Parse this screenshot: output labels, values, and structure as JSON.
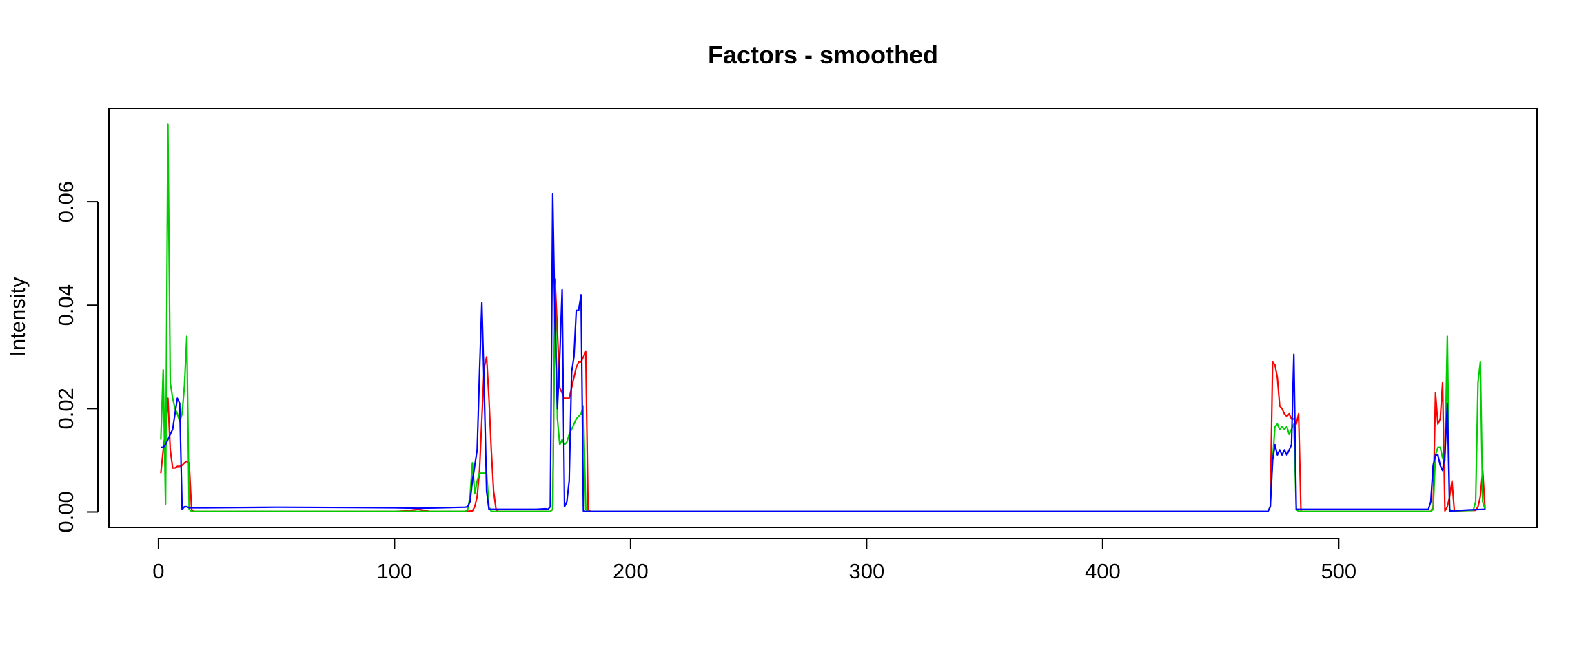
{
  "chart_data": {
    "type": "line",
    "title": "Factors - smoothed",
    "xlabel": "",
    "ylabel": "Intensity",
    "xlim": [
      -21,
      584
    ],
    "ylim": [
      -0.003,
      0.078
    ],
    "x_ticks": [
      0,
      100,
      200,
      300,
      400,
      500
    ],
    "y_ticks": [
      0.0,
      0.02,
      0.04,
      0.06
    ],
    "x_tick_labels": [
      "0",
      "100",
      "200",
      "300",
      "400",
      "500"
    ],
    "y_tick_labels": [
      "0.00",
      "0.02",
      "0.04",
      "0.06"
    ],
    "grid": false,
    "legend": "none",
    "series": [
      {
        "color": "#ff0000",
        "points": [
          [
            1,
            0.0075
          ],
          [
            2,
            0.012
          ],
          [
            3,
            0.016
          ],
          [
            4,
            0.022
          ],
          [
            5,
            0.012
          ],
          [
            6,
            0.0085
          ],
          [
            7,
            0.0085
          ],
          [
            8,
            0.0088
          ],
          [
            9,
            0.0088
          ],
          [
            10,
            0.009
          ],
          [
            11,
            0.0095
          ],
          [
            12,
            0.0098
          ],
          [
            13,
            0.0095
          ],
          [
            14,
            0.0005
          ],
          [
            15,
            0.0001
          ],
          [
            20,
            0.0001
          ],
          [
            100,
            0.0001
          ],
          [
            105,
            0.0002
          ],
          [
            110,
            0.0005
          ],
          [
            115,
            0.0001
          ],
          [
            130,
            0.0001
          ],
          [
            133,
            0.0002
          ],
          [
            134,
            0.001
          ],
          [
            135,
            0.003
          ],
          [
            136,
            0.008
          ],
          [
            137,
            0.018
          ],
          [
            138,
            0.028
          ],
          [
            139,
            0.03
          ],
          [
            140,
            0.022
          ],
          [
            141,
            0.012
          ],
          [
            142,
            0.004
          ],
          [
            143,
            0.0005
          ],
          [
            144,
            0.0001
          ],
          [
            166,
            0.0001
          ],
          [
            167,
            0.0005
          ],
          [
            168,
            0.045
          ],
          [
            169,
            0.035
          ],
          [
            170,
            0.024
          ],
          [
            171,
            0.023
          ],
          [
            172,
            0.022
          ],
          [
            173,
            0.022
          ],
          [
            174,
            0.022
          ],
          [
            175,
            0.024
          ],
          [
            176,
            0.026
          ],
          [
            177,
            0.028
          ],
          [
            178,
            0.029
          ],
          [
            179,
            0.029
          ],
          [
            180,
            0.03
          ],
          [
            181,
            0.031
          ],
          [
            182,
            0.0005
          ],
          [
            183,
            0.0001
          ],
          [
            470,
            0.0001
          ],
          [
            471,
            0.001
          ],
          [
            472,
            0.029
          ],
          [
            473,
            0.0285
          ],
          [
            474,
            0.026
          ],
          [
            475,
            0.0205
          ],
          [
            476,
            0.02
          ],
          [
            477,
            0.019
          ],
          [
            478,
            0.0185
          ],
          [
            479,
            0.019
          ],
          [
            480,
            0.018
          ],
          [
            481,
            0.018
          ],
          [
            482,
            0.017
          ],
          [
            483,
            0.019
          ],
          [
            484,
            0.0002
          ],
          [
            485,
            0.0001
          ],
          [
            539,
            0.0001
          ],
          [
            540,
            0.001
          ],
          [
            541,
            0.023
          ],
          [
            542,
            0.017
          ],
          [
            543,
            0.018
          ],
          [
            544,
            0.025
          ],
          [
            545,
            0.0002
          ],
          [
            546,
            0.001
          ],
          [
            547,
            0.003
          ],
          [
            548,
            0.006
          ],
          [
            549,
            0.0002
          ],
          [
            558,
            0.0003
          ],
          [
            559,
            0.001
          ],
          [
            560,
            0.003
          ],
          [
            561,
            0.008
          ],
          [
            562,
            0.0005
          ]
        ]
      },
      {
        "color": "#00cd00",
        "points": [
          [
            1,
            0.014
          ],
          [
            2,
            0.0275
          ],
          [
            3,
            0.0015
          ],
          [
            4,
            0.075
          ],
          [
            5,
            0.025
          ],
          [
            6,
            0.022
          ],
          [
            7,
            0.02
          ],
          [
            8,
            0.019
          ],
          [
            9,
            0.0175
          ],
          [
            10,
            0.019
          ],
          [
            11,
            0.0245
          ],
          [
            12,
            0.034
          ],
          [
            13,
            0.0005
          ],
          [
            14,
            0.0001
          ],
          [
            130,
            0.0001
          ],
          [
            131,
            0.0005
          ],
          [
            132,
            0.003
          ],
          [
            133,
            0.0095
          ],
          [
            134,
            0.0035
          ],
          [
            135,
            0.006
          ],
          [
            136,
            0.0075
          ],
          [
            137,
            0.0075
          ],
          [
            138,
            0.0075
          ],
          [
            139,
            0.0075
          ],
          [
            140,
            0.001
          ],
          [
            141,
            0.0001
          ],
          [
            166,
            0.0001
          ],
          [
            167,
            0.0005
          ],
          [
            168,
            0.044
          ],
          [
            169,
            0.018
          ],
          [
            170,
            0.013
          ],
          [
            171,
            0.014
          ],
          [
            172,
            0.013
          ],
          [
            173,
            0.0135
          ],
          [
            174,
            0.015
          ],
          [
            175,
            0.016
          ],
          [
            176,
            0.017
          ],
          [
            177,
            0.018
          ],
          [
            178,
            0.0185
          ],
          [
            179,
            0.019
          ],
          [
            180,
            0.0205
          ],
          [
            181,
            0.0005
          ],
          [
            182,
            0.0001
          ],
          [
            470,
            0.0001
          ],
          [
            471,
            0.001
          ],
          [
            472,
            0.01
          ],
          [
            473,
            0.0165
          ],
          [
            474,
            0.017
          ],
          [
            475,
            0.016
          ],
          [
            476,
            0.0165
          ],
          [
            477,
            0.016
          ],
          [
            478,
            0.0165
          ],
          [
            479,
            0.015
          ],
          [
            480,
            0.016
          ],
          [
            481,
            0.017
          ],
          [
            482,
            0.0005
          ],
          [
            483,
            0.0001
          ],
          [
            539,
            0.0001
          ],
          [
            540,
            0.0005
          ],
          [
            541,
            0.011
          ],
          [
            542,
            0.0125
          ],
          [
            543,
            0.0125
          ],
          [
            544,
            0.0105
          ],
          [
            545,
            0.01
          ],
          [
            546,
            0.034
          ],
          [
            547,
            0.0005
          ],
          [
            548,
            0.0002
          ],
          [
            557,
            0.0003
          ],
          [
            558,
            0.002
          ],
          [
            559,
            0.025
          ],
          [
            560,
            0.029
          ],
          [
            561,
            0.002
          ],
          [
            562,
            0.0005
          ]
        ]
      },
      {
        "color": "#0000ff",
        "points": [
          [
            1,
            0.0125
          ],
          [
            2,
            0.0125
          ],
          [
            3,
            0.013
          ],
          [
            4,
            0.014
          ],
          [
            5,
            0.015
          ],
          [
            6,
            0.016
          ],
          [
            7,
            0.019
          ],
          [
            8,
            0.022
          ],
          [
            9,
            0.021
          ],
          [
            10,
            0.0005
          ],
          [
            11,
            0.001
          ],
          [
            12,
            0.001
          ],
          [
            13,
            0.0008
          ],
          [
            20,
            0.0008
          ],
          [
            50,
            0.0009
          ],
          [
            100,
            0.0008
          ],
          [
            110,
            0.0007
          ],
          [
            120,
            0.0008
          ],
          [
            130,
            0.0009
          ],
          [
            131,
            0.001
          ],
          [
            132,
            0.002
          ],
          [
            133,
            0.006
          ],
          [
            134,
            0.009
          ],
          [
            135,
            0.012
          ],
          [
            136,
            0.027
          ],
          [
            137,
            0.0405
          ],
          [
            138,
            0.024
          ],
          [
            139,
            0.004
          ],
          [
            140,
            0.0005
          ],
          [
            141,
            0.0005
          ],
          [
            160,
            0.0005
          ],
          [
            164,
            0.0006
          ],
          [
            165,
            0.0005
          ],
          [
            166,
            0.001
          ],
          [
            167,
            0.0615
          ],
          [
            168,
            0.036
          ],
          [
            169,
            0.02
          ],
          [
            170,
            0.03
          ],
          [
            171,
            0.043
          ],
          [
            172,
            0.001
          ],
          [
            173,
            0.002
          ],
          [
            174,
            0.006
          ],
          [
            175,
            0.027
          ],
          [
            176,
            0.03
          ],
          [
            177,
            0.039
          ],
          [
            178,
            0.039
          ],
          [
            179,
            0.042
          ],
          [
            180,
            0.0002
          ],
          [
            181,
            0.0001
          ],
          [
            300,
            0.0001
          ],
          [
            400,
            0.0001
          ],
          [
            470,
            0.0001
          ],
          [
            471,
            0.001
          ],
          [
            472,
            0.01
          ],
          [
            473,
            0.013
          ],
          [
            474,
            0.011
          ],
          [
            475,
            0.012
          ],
          [
            476,
            0.011
          ],
          [
            477,
            0.012
          ],
          [
            478,
            0.011
          ],
          [
            479,
            0.012
          ],
          [
            480,
            0.013
          ],
          [
            481,
            0.0305
          ],
          [
            482,
            0.0005
          ],
          [
            483,
            0.0005
          ],
          [
            500,
            0.0005
          ],
          [
            538,
            0.0005
          ],
          [
            539,
            0.002
          ],
          [
            540,
            0.009
          ],
          [
            541,
            0.011
          ],
          [
            542,
            0.011
          ],
          [
            543,
            0.009
          ],
          [
            544,
            0.008
          ],
          [
            545,
            0.011
          ],
          [
            546,
            0.021
          ],
          [
            547,
            0.0002
          ],
          [
            548,
            0.0002
          ],
          [
            555,
            0.0004
          ],
          [
            562,
            0.0005
          ]
        ]
      }
    ]
  }
}
